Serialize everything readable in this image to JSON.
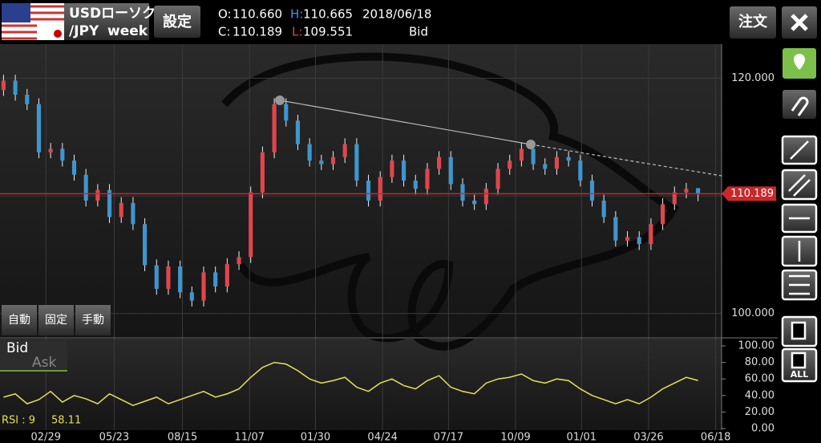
{
  "header": {
    "symbol": "USDローソク",
    "pair": "/JPY",
    "period": "week",
    "settings": "設定",
    "open_label": "O:",
    "open": "110.660",
    "high_label": "H:",
    "high": "110.665",
    "date": "2018/06/18",
    "close_label": "C:",
    "close": "110.189",
    "low_label": "L:",
    "low": "109.551",
    "quote": "Bid"
  },
  "toolbar": {
    "order": "注文",
    "clear_all": "ALL"
  },
  "mode_buttons": [
    "自動",
    "固定",
    "手動"
  ],
  "price_toggle": [
    "Bid",
    "Ask"
  ],
  "chart_data": {
    "type": "candlestick",
    "open": [
      119.0,
      119.8,
      118.6,
      117.8,
      113.7,
      114.0,
      113.0,
      111.8,
      109.6,
      110.5,
      108.2,
      109.4,
      107.6,
      104.1,
      102.1,
      104.0,
      101.8,
      101.1,
      103.5,
      102.3,
      104.2,
      104.8,
      110.3,
      113.7,
      117.8,
      116.4,
      114.4,
      113.0,
      112.7,
      113.3,
      114.4,
      111.3,
      109.6,
      111.6,
      113.0,
      111.3,
      110.6,
      112.3,
      113.3,
      111.0,
      109.6,
      109.3,
      110.6,
      112.3,
      113.0,
      114.0,
      112.7,
      112.3,
      113.3,
      113.0,
      111.3,
      109.6,
      108.2,
      106.2,
      106.5,
      105.9,
      107.6,
      109.3,
      110.3,
      110.66
    ],
    "high": [
      120.3,
      120.3,
      119.1,
      118.3,
      114.5,
      114.5,
      113.5,
      112.3,
      111.0,
      111.0,
      109.9,
      109.9,
      108.1,
      104.6,
      104.5,
      104.5,
      102.3,
      104.0,
      104.0,
      104.7,
      105.3,
      110.8,
      114.2,
      118.3,
      118.3,
      116.9,
      114.9,
      113.5,
      113.8,
      114.9,
      114.9,
      111.8,
      112.1,
      113.5,
      113.5,
      111.8,
      112.8,
      113.8,
      113.8,
      111.5,
      110.1,
      111.1,
      112.8,
      113.5,
      114.5,
      114.5,
      113.2,
      113.8,
      113.8,
      113.5,
      111.8,
      110.1,
      108.7,
      107.0,
      107.0,
      108.1,
      109.8,
      110.8,
      111.1,
      110.665
    ],
    "low": [
      118.5,
      118.1,
      117.3,
      113.2,
      113.2,
      112.5,
      111.3,
      109.1,
      109.1,
      107.7,
      107.7,
      107.1,
      103.6,
      101.6,
      101.6,
      101.3,
      100.6,
      100.6,
      101.8,
      101.8,
      103.7,
      104.3,
      109.8,
      113.2,
      115.9,
      113.9,
      112.5,
      112.2,
      112.2,
      112.8,
      110.8,
      109.1,
      109.1,
      111.1,
      110.8,
      110.1,
      110.1,
      111.8,
      110.5,
      109.1,
      108.8,
      108.8,
      110.1,
      111.8,
      112.5,
      112.2,
      111.8,
      111.8,
      112.5,
      110.8,
      109.1,
      107.7,
      105.7,
      105.7,
      105.4,
      105.4,
      107.1,
      108.8,
      109.8,
      109.551
    ],
    "close": [
      119.8,
      118.6,
      117.8,
      113.7,
      114.0,
      113.0,
      111.8,
      109.6,
      110.5,
      108.2,
      109.4,
      107.6,
      104.1,
      102.1,
      104.0,
      101.8,
      101.1,
      103.5,
      102.3,
      104.2,
      104.8,
      110.3,
      113.7,
      117.8,
      116.4,
      114.4,
      113.0,
      112.7,
      113.3,
      114.4,
      111.3,
      109.6,
      111.6,
      113.0,
      111.3,
      110.6,
      112.3,
      113.3,
      111.0,
      109.6,
      109.3,
      110.6,
      112.3,
      113.0,
      114.0,
      112.7,
      112.3,
      113.3,
      113.0,
      111.3,
      109.6,
      108.2,
      106.2,
      106.5,
      105.9,
      107.6,
      109.3,
      110.3,
      110.6,
      110.189
    ],
    "up_color": "#e0464c",
    "down_color": "#3f95cf",
    "xlim": [
      -0.3,
      61
    ],
    "xticks": [
      {
        "value": 3.6,
        "label": "02/29"
      },
      {
        "value": 9.4,
        "label": "05/23"
      },
      {
        "value": 15.2,
        "label": "08/15"
      },
      {
        "value": 20.9,
        "label": "11/07"
      },
      {
        "value": 26.5,
        "label": "01/30"
      },
      {
        "value": 32.2,
        "label": "04/24"
      },
      {
        "value": 37.8,
        "label": "07/17"
      },
      {
        "value": 43.5,
        "label": "10/09"
      },
      {
        "value": 49.1,
        "label": "01/01"
      },
      {
        "value": 54.8,
        "label": "03/26"
      },
      {
        "value": 60.5,
        "label": "06/18"
      }
    ],
    "ylim": [
      98,
      122.9
    ],
    "yticks": [
      {
        "value": 100,
        "label": "100.000"
      },
      {
        "value": 110,
        "label": "110.000"
      },
      {
        "value": 120,
        "label": "120.000"
      }
    ],
    "grid": true,
    "last_price": 110.189,
    "last_price_color": "#c8282c",
    "rsi": {
      "type": "line",
      "name": "RSI : 9",
      "color": "#e6df5a",
      "values": [
        38,
        42,
        30,
        35,
        45,
        32,
        40,
        36,
        30,
        42,
        35,
        28,
        33,
        38,
        30,
        35,
        40,
        45,
        38,
        42,
        48,
        62,
        74,
        80,
        78,
        70,
        60,
        55,
        58,
        62,
        50,
        45,
        55,
        60,
        52,
        48,
        58,
        64,
        50,
        45,
        42,
        55,
        60,
        62,
        66,
        58,
        55,
        60,
        58,
        48,
        40,
        35,
        30,
        35,
        30,
        38,
        48,
        55,
        62,
        58.11
      ],
      "ylim": [
        0,
        100
      ],
      "yticks": [
        {
          "value": 0,
          "label": "0.00"
        },
        {
          "value": 20,
          "label": "20.00"
        },
        {
          "value": 40,
          "label": "40.00"
        },
        {
          "value": 60,
          "label": "60.00"
        },
        {
          "value": 80,
          "label": "80.00"
        },
        {
          "value": 100,
          "label": "100.00"
        }
      ]
    }
  }
}
